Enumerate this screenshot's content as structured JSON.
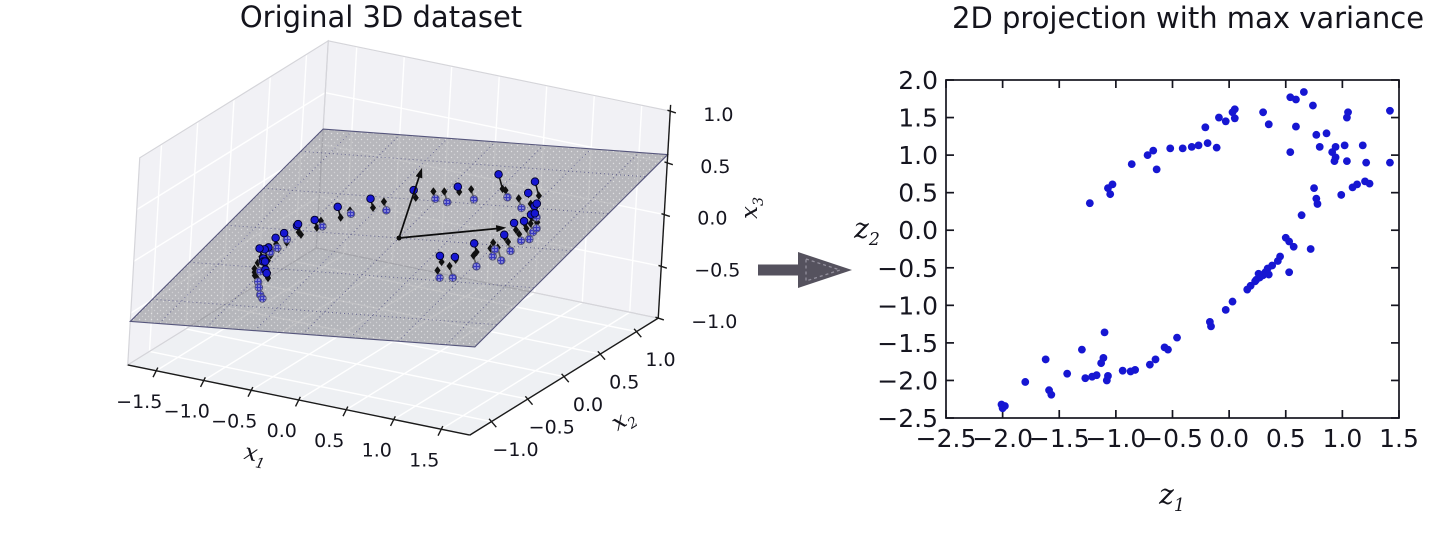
{
  "chart_data": [
    {
      "type": "scatter3d",
      "title": "Original 3D dataset",
      "xlabel": {
        "base": "x",
        "sub": "1"
      },
      "ylabel": {
        "base": "x",
        "sub": "2"
      },
      "zlabel": {
        "base": "x",
        "sub": "3"
      },
      "x1_ticks": [
        -1.5,
        -1.0,
        -0.5,
        0.0,
        0.5,
        1.0,
        1.5
      ],
      "x2_ticks": [
        -1.0,
        -0.5,
        0.0,
        0.5,
        1.0
      ],
      "x3_ticks": [
        -1.0,
        -0.5,
        0.0,
        0.5,
        1.0
      ],
      "x1_range": [
        -1.8,
        1.8
      ],
      "x2_range": [
        -1.3,
        1.3
      ],
      "x3_range": [
        -1.0,
        1.0
      ],
      "plane": {
        "a": 0.12,
        "b": 0.28
      },
      "pc_arrows": [
        [
          0.88,
          0.23,
          0.16
        ],
        [
          -0.4,
          0.8,
          0.2
        ]
      ],
      "points": [
        [
          0.7,
          -0.35,
          -0.1
        ],
        [
          0.64,
          -0.28,
          0.07
        ],
        [
          0.78,
          -0.27,
          -0.12
        ],
        [
          0.76,
          -0.23,
          0.06
        ],
        [
          0.91,
          -0.12,
          -0.05
        ],
        [
          0.88,
          -0.13,
          0.17
        ],
        [
          1.0,
          -0.02,
          0.02
        ],
        [
          0.97,
          0.05,
          0.05
        ],
        [
          1.07,
          0.01,
          -0.02
        ],
        [
          1.02,
          0.1,
          0.18
        ],
        [
          1.11,
          0.08,
          0.05
        ],
        [
          1.05,
          0.19,
          0.26
        ],
        [
          1.14,
          0.18,
          0.11
        ],
        [
          1.08,
          0.29,
          0.24
        ],
        [
          1.16,
          0.27,
          0.09
        ],
        [
          1.09,
          0.37,
          0.27
        ],
        [
          1.15,
          0.33,
          0.13
        ],
        [
          1.07,
          0.44,
          0.32
        ],
        [
          1.12,
          0.42,
          0.12
        ],
        [
          1.02,
          0.54,
          0.29
        ],
        [
          1.04,
          0.52,
          0.17
        ],
        [
          0.93,
          0.62,
          0.45
        ],
        [
          0.96,
          0.58,
          0.17
        ],
        [
          0.83,
          0.67,
          0.3
        ],
        [
          0.79,
          0.64,
          0.16
        ],
        [
          0.58,
          0.72,
          0.19
        ],
        [
          0.51,
          0.67,
          0.42
        ],
        [
          0.24,
          0.71,
          0.11
        ],
        [
          0.13,
          0.62,
          0.25
        ],
        [
          -0.11,
          0.64,
          0.08
        ],
        [
          -0.24,
          0.5,
          0.2
        ],
        [
          -0.49,
          0.47,
          -0.03
        ],
        [
          -0.56,
          0.33,
          0.13
        ],
        [
          -0.74,
          0.31,
          -0.04
        ],
        [
          -0.78,
          0.17,
          0.08
        ],
        [
          -0.92,
          0.16,
          -0.13
        ],
        [
          -0.91,
          0.03,
          -0.01
        ],
        [
          -1.04,
          -0.04,
          -0.06
        ],
        [
          -1.0,
          -0.08,
          -0.02
        ],
        [
          -1.1,
          -0.09,
          -0.18
        ],
        [
          -1.06,
          -0.19,
          -0.07
        ],
        [
          -1.13,
          -0.18,
          -0.23
        ],
        [
          -1.08,
          -0.28,
          -0.08
        ],
        [
          -1.14,
          -0.26,
          -0.24
        ],
        [
          -1.09,
          -0.36,
          -0.14
        ],
        [
          -1.15,
          -0.35,
          -0.29
        ],
        [
          -1.07,
          -0.44,
          -0.12
        ],
        [
          -1.12,
          -0.42,
          -0.35
        ],
        [
          -1.03,
          -0.51,
          -0.17
        ],
        [
          -1.09,
          -0.48,
          -0.42
        ],
        [
          -0.99,
          -0.56,
          -0.17
        ],
        [
          -1.05,
          -0.52,
          -0.45
        ],
        [
          -0.95,
          -0.59,
          -0.15
        ],
        [
          -1.01,
          -0.55,
          -0.5
        ],
        [
          -0.92,
          -0.62,
          -0.21
        ],
        [
          -0.97,
          -0.57,
          -0.52
        ],
        [
          -0.89,
          -0.64,
          -0.23
        ],
        [
          1.18,
          0.3,
          0.33
        ],
        [
          -1.11,
          -0.46,
          -0.11
        ],
        [
          0.0,
          0.66,
          0.06
        ]
      ],
      "colors": {
        "point": "#1616d2",
        "point_edge": "#00002a",
        "below_fill": "#3a3ac0",
        "plane": "rgba(70,70,80,0.34)",
        "plane_edge": "#56567c",
        "wall": "#f1f1f5",
        "floor": "#eef0f3",
        "grid": "#ffffff",
        "axis": "#1a1a1a",
        "marker": "#111111",
        "line_above": "#141414",
        "line_below": "#5a5a5a"
      }
    },
    {
      "type": "scatter",
      "title": "2D projection with max variance",
      "xlabel": {
        "base": "z",
        "sub": "1"
      },
      "ylabel": {
        "base": "z",
        "sub": "2"
      },
      "xticks": [
        -2.5,
        -2.0,
        -1.5,
        -1.0,
        -0.5,
        0.0,
        0.5,
        1.0,
        1.5
      ],
      "yticks": [
        2.0,
        1.5,
        1.0,
        0.5,
        0.0,
        -0.5,
        -1.0,
        -1.5,
        -2.0,
        -2.5
      ],
      "xlim": [
        -2.5,
        1.5
      ],
      "ylim": [
        -2.5,
        2.0
      ],
      "grid": false,
      "points": [
        [
          -1.23,
          0.36
        ],
        [
          -1.07,
          0.56
        ],
        [
          -1.03,
          0.61
        ],
        [
          -1.05,
          0.48
        ],
        [
          -0.86,
          0.88
        ],
        [
          -0.72,
          1.0
        ],
        [
          -0.67,
          1.06
        ],
        [
          -0.64,
          0.81
        ],
        [
          -0.52,
          1.09
        ],
        [
          -0.41,
          1.09
        ],
        [
          -0.33,
          1.11
        ],
        [
          -0.27,
          1.13
        ],
        [
          -0.19,
          1.16
        ],
        [
          -0.11,
          1.1
        ],
        [
          -0.21,
          1.37
        ],
        [
          -0.09,
          1.5
        ],
        [
          -0.03,
          1.45
        ],
        [
          0.03,
          1.57
        ],
        [
          0.05,
          1.61
        ],
        [
          0.05,
          1.49
        ],
        [
          0.3,
          1.57
        ],
        [
          0.35,
          1.41
        ],
        [
          0.54,
          1.77
        ],
        [
          0.59,
          1.74
        ],
        [
          0.66,
          1.84
        ],
        [
          0.59,
          1.38
        ],
        [
          0.54,
          1.04
        ],
        [
          0.74,
          1.66
        ],
        [
          0.77,
          1.27
        ],
        [
          0.8,
          1.11
        ],
        [
          0.86,
          1.29
        ],
        [
          0.91,
          1.04
        ],
        [
          0.94,
          0.97
        ],
        [
          0.93,
          0.92
        ],
        [
          0.94,
          1.11
        ],
        [
          1.02,
          1.13
        ],
        [
          1.04,
          1.5
        ],
        [
          1.05,
          1.57
        ],
        [
          1.18,
          1.13
        ],
        [
          1.21,
          0.9
        ],
        [
          1.04,
          0.92
        ],
        [
          1.42,
          1.59
        ],
        [
          1.42,
          0.9
        ],
        [
          1.2,
          0.65
        ],
        [
          1.24,
          0.62
        ],
        [
          1.13,
          0.61
        ],
        [
          1.09,
          0.57
        ],
        [
          0.99,
          0.47
        ],
        [
          0.75,
          0.56
        ],
        [
          0.77,
          0.42
        ],
        [
          0.78,
          0.35
        ],
        [
          0.64,
          0.2
        ],
        [
          0.5,
          -0.1
        ],
        [
          0.53,
          -0.15
        ],
        [
          0.57,
          -0.22
        ],
        [
          0.72,
          -0.25
        ],
        [
          0.45,
          -0.35
        ],
        [
          0.43,
          -0.41
        ],
        [
          0.53,
          -0.56
        ],
        [
          0.38,
          -0.47
        ],
        [
          0.34,
          -0.51
        ],
        [
          0.32,
          -0.56
        ],
        [
          0.35,
          -0.59
        ],
        [
          0.3,
          -0.6
        ],
        [
          0.27,
          -0.63
        ],
        [
          0.24,
          -0.66
        ],
        [
          0.23,
          -0.68
        ],
        [
          0.26,
          -0.58
        ],
        [
          0.19,
          -0.74
        ],
        [
          0.16,
          -0.79
        ],
        [
          0.03,
          -0.95
        ],
        [
          -0.03,
          -1.06
        ],
        [
          -0.17,
          -1.22
        ],
        [
          -0.16,
          -1.28
        ],
        [
          -0.46,
          -1.43
        ],
        [
          -0.57,
          -1.56
        ],
        [
          -0.54,
          -1.59
        ],
        [
          -0.65,
          -1.72
        ],
        [
          -0.7,
          -1.79
        ],
        [
          -0.83,
          -1.86
        ],
        [
          -0.87,
          -1.88
        ],
        [
          -0.94,
          -1.87
        ],
        [
          -1.1,
          -1.36
        ],
        [
          -1.11,
          -1.7
        ],
        [
          -1.13,
          -1.77
        ],
        [
          -1.3,
          -1.59
        ],
        [
          -1.21,
          -1.95
        ],
        [
          -1.17,
          -1.93
        ],
        [
          -1.08,
          -2.0
        ],
        [
          -1.07,
          -1.94
        ],
        [
          -1.27,
          -1.97
        ],
        [
          -1.43,
          -1.91
        ],
        [
          -1.62,
          -1.72
        ],
        [
          -1.59,
          -2.13
        ],
        [
          -1.57,
          -2.19
        ],
        [
          -1.8,
          -2.02
        ],
        [
          -2.01,
          -2.32
        ],
        [
          -1.98,
          -2.34
        ],
        [
          -2.0,
          -2.37
        ]
      ],
      "colors": {
        "dot": "#1616d2",
        "axis": "#15151f"
      }
    }
  ],
  "connector": {
    "name": "projection arrow",
    "color": "#55525e",
    "inner_color": "#9a97a4"
  }
}
